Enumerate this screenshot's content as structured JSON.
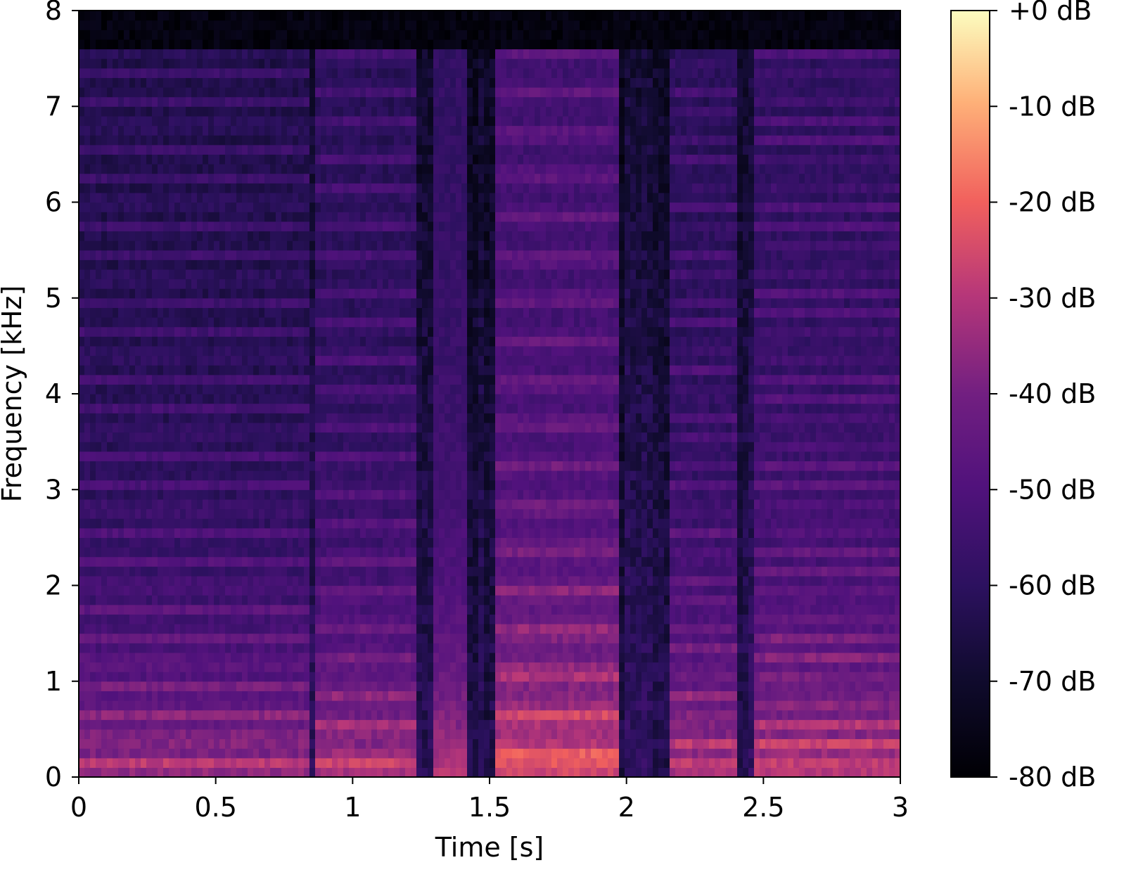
{
  "chart_data": {
    "type": "heatmap",
    "title": "",
    "xlabel": "Time [s]",
    "ylabel": "Frequency [kHz]",
    "xlim": [
      0,
      3
    ],
    "ylim": [
      0,
      8
    ],
    "x_ticks": [
      0,
      0.5,
      1,
      1.5,
      2,
      2.5,
      3
    ],
    "x_tick_labels": [
      "0",
      "0.5",
      "1",
      "1.5",
      "2",
      "2.5",
      "3"
    ],
    "y_ticks": [
      0,
      1,
      2,
      3,
      4,
      5,
      6,
      7,
      8
    ],
    "y_tick_labels": [
      "0",
      "1",
      "2",
      "3",
      "4",
      "5",
      "6",
      "7",
      "8"
    ],
    "colorbar": {
      "range": [
        -80,
        0
      ],
      "unit": "dB",
      "colormap": "magma",
      "ticks": [
        0,
        -10,
        -20,
        -30,
        -40,
        -50,
        -60,
        -70,
        -80
      ],
      "tick_labels": [
        "+0 dB",
        "-10 dB",
        "-20 dB",
        "-30 dB",
        "-40 dB",
        "-50 dB",
        "-60 dB",
        "-70 dB",
        "-80 dB"
      ]
    },
    "segments": [
      {
        "start": 0.0,
        "end": 0.85,
        "level_db": -25,
        "f0_hz": 160
      },
      {
        "start": 0.87,
        "end": 1.24,
        "level_db": -22,
        "f0_hz": 140
      },
      {
        "start": 1.3,
        "end": 1.41,
        "level_db": -20,
        "f0_hz": 200
      },
      {
        "start": 1.53,
        "end": 1.98,
        "level_db": -15,
        "f0_hz": 130
      },
      {
        "start": 2.15,
        "end": 2.4,
        "level_db": -22,
        "f0_hz": 170
      },
      {
        "start": 2.46,
        "end": 3.0,
        "level_db": -20,
        "f0_hz": 180
      }
    ],
    "colors": {
      "low": "#000004",
      "mid": "#b73779",
      "high": "#fcfdbf"
    }
  }
}
